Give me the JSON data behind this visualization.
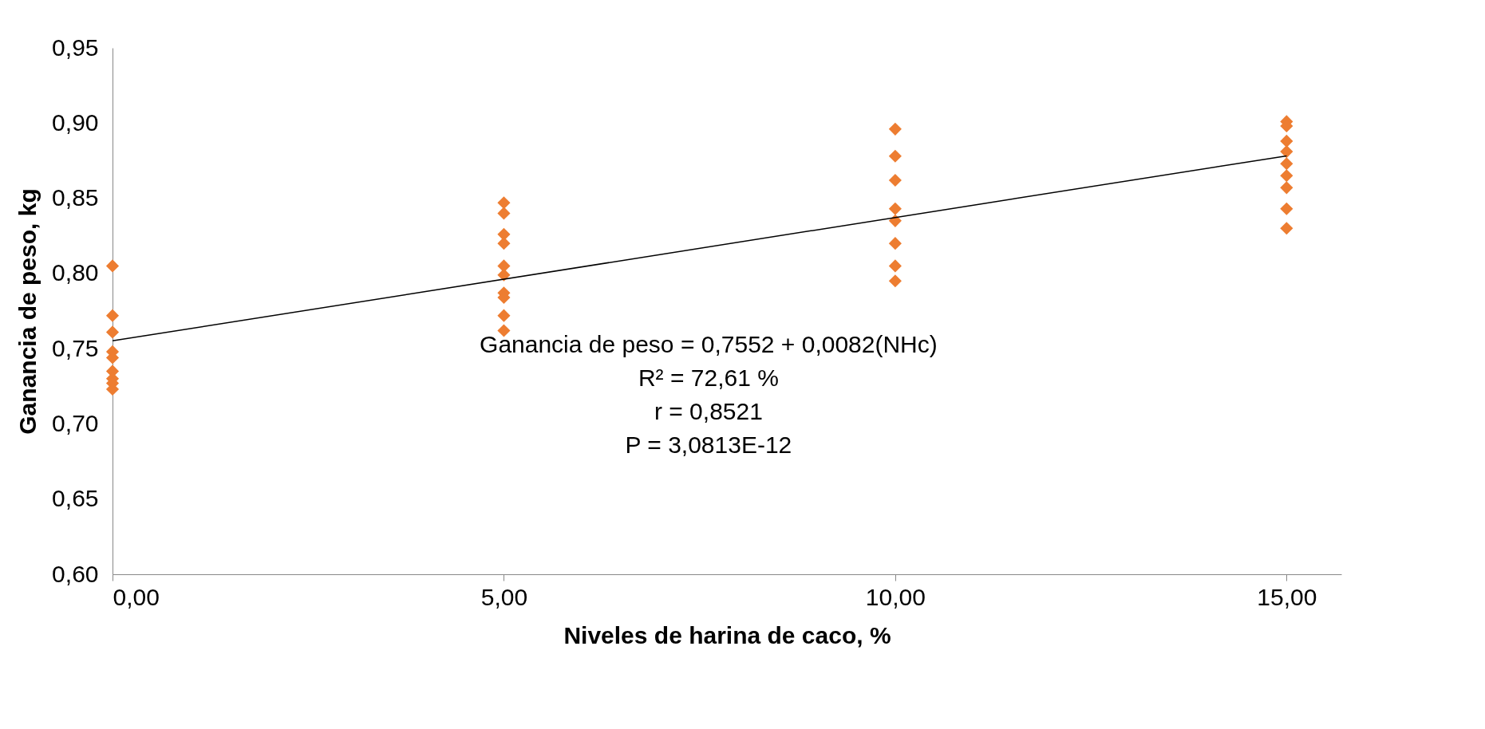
{
  "chart_data": {
    "type": "scatter",
    "xlabel": "Niveles de harina de caco, %",
    "ylabel": "Ganancia de peso, kg",
    "xlim": [
      0,
      15.7
    ],
    "ylim": [
      0.6,
      0.95
    ],
    "xticks": [
      {
        "value": 0,
        "label": "0,00"
      },
      {
        "value": 5,
        "label": "5,00"
      },
      {
        "value": 10,
        "label": "10,00"
      },
      {
        "value": 15,
        "label": "15,00"
      }
    ],
    "yticks": [
      {
        "value": 0.6,
        "label": "0,60"
      },
      {
        "value": 0.65,
        "label": "0,65"
      },
      {
        "value": 0.7,
        "label": "0,70"
      },
      {
        "value": 0.75,
        "label": "0,75"
      },
      {
        "value": 0.8,
        "label": "0,80"
      },
      {
        "value": 0.85,
        "label": "0,85"
      },
      {
        "value": 0.9,
        "label": "0,90"
      },
      {
        "value": 0.95,
        "label": "0,95"
      }
    ],
    "grid": false,
    "marker": "diamond",
    "series": [
      {
        "color": "#ed7d31",
        "x": [
          0,
          0,
          0,
          0,
          0,
          0,
          0,
          0,
          0,
          5,
          5,
          5,
          5,
          5,
          5,
          5,
          5,
          5,
          5,
          10,
          10,
          10,
          10,
          10,
          10,
          10,
          10,
          15,
          15,
          15,
          15,
          15,
          15,
          15,
          15,
          15
        ],
        "values": [
          0.805,
          0.772,
          0.761,
          0.748,
          0.744,
          0.735,
          0.73,
          0.727,
          0.723,
          0.847,
          0.84,
          0.826,
          0.82,
          0.805,
          0.799,
          0.787,
          0.784,
          0.772,
          0.762,
          0.896,
          0.878,
          0.862,
          0.843,
          0.835,
          0.82,
          0.805,
          0.795,
          0.901,
          0.898,
          0.888,
          0.881,
          0.873,
          0.865,
          0.857,
          0.843,
          0.83
        ]
      },
      {
        "type": "line",
        "marker": "none",
        "color": "#000000",
        "x": [
          0,
          15
        ],
        "values": [
          0.7552,
          0.8782
        ]
      }
    ],
    "annotations": [
      "Ganancia de peso = 0,7552 + 0,0082(NHc)",
      "R² = 72,61 %",
      "r = 0,8521",
      "P = 3,0813E-12"
    ]
  }
}
